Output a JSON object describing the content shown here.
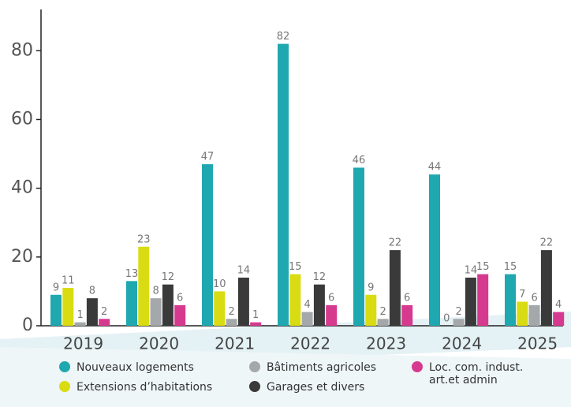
{
  "chart_data": {
    "type": "bar",
    "categories": [
      "2019",
      "2020",
      "2021",
      "2022",
      "2023",
      "2024",
      "2025"
    ],
    "series": [
      {
        "name": "Nouveaux logements",
        "color": "#1fa8b0",
        "values": [
          9,
          13,
          47,
          82,
          46,
          44,
          15
        ]
      },
      {
        "name": "Extensions d’habitations",
        "color": "#d9dc12",
        "values": [
          11,
          23,
          10,
          15,
          9,
          0,
          7
        ]
      },
      {
        "name": "Bâtiments agricoles",
        "color": "#a5a8aa",
        "values": [
          1,
          8,
          2,
          4,
          2,
          2,
          6
        ]
      },
      {
        "name": "Garages et divers",
        "color": "#3a3a3a",
        "values": [
          8,
          12,
          14,
          12,
          22,
          14,
          22
        ]
      },
      {
        "name": "Loc. com. indust. art.et admin",
        "color": "#d63a8f",
        "values": [
          2,
          6,
          1,
          6,
          6,
          15,
          4
        ]
      }
    ],
    "ylim": [
      0,
      92
    ],
    "yticks": [
      0,
      20,
      40,
      60,
      80
    ],
    "grid": false,
    "legend": "bottom"
  }
}
